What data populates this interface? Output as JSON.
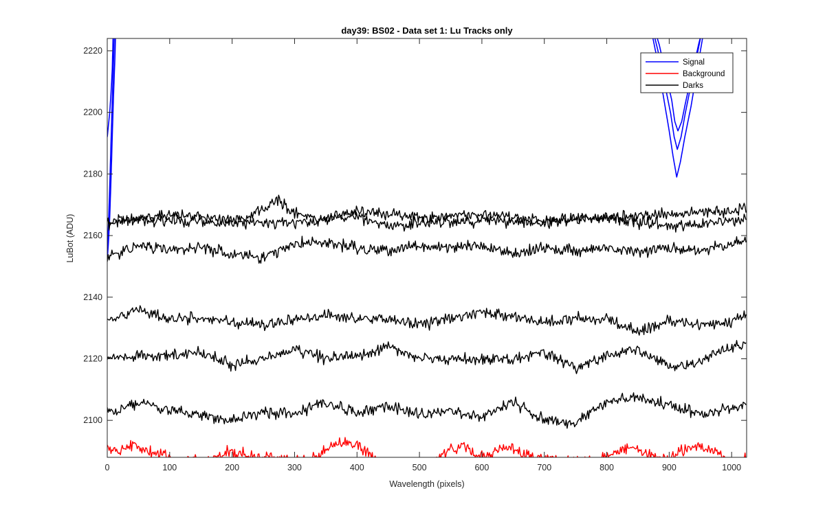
{
  "chart_data": {
    "type": "line",
    "title": "day39: BS02 - Data set 1: Lu Tracks only",
    "xlabel": "Wavelength (pixels)",
    "ylabel": "LuBot (ADU)",
    "xlim": [
      0,
      1024
    ],
    "ylim": [
      2088,
      2224
    ],
    "xticks": [
      0,
      100,
      200,
      300,
      400,
      500,
      600,
      700,
      800,
      900,
      1000
    ],
    "yticks": [
      2100,
      2120,
      2140,
      2160,
      2180,
      2200,
      2220
    ],
    "grid": false,
    "legend_position": "top-right",
    "legend": [
      {
        "label": "Signal",
        "color": "#0000ff"
      },
      {
        "label": "Background",
        "color": "#ff0000"
      },
      {
        "label": "Darks",
        "color": "#000000"
      }
    ],
    "series": [
      {
        "group": "Signal",
        "color": "#0000ff",
        "x": [
          0,
          2,
          4,
          6,
          8,
          10,
          12,
          14
        ],
        "y": [
          2152,
          2158,
          2166,
          2178,
          2192,
          2205,
          2216,
          2230
        ]
      },
      {
        "group": "Signal",
        "color": "#0000ff",
        "x": [
          0,
          2,
          4,
          6,
          8,
          10,
          12
        ],
        "y": [
          2156,
          2164,
          2176,
          2190,
          2204,
          2216,
          2230
        ]
      },
      {
        "group": "Signal",
        "color": "#0000ff",
        "x": [
          0,
          2,
          4,
          6,
          8,
          10
        ],
        "y": [
          2192,
          2196,
          2200,
          2206,
          2214,
          2230
        ]
      },
      {
        "group": "Signal",
        "color": "#0000ff",
        "x": [
          868,
          880,
          890,
          900,
          906,
          912,
          918,
          925,
          935,
          945,
          955,
          962
        ],
        "y": [
          2230,
          2218,
          2206,
          2194,
          2186,
          2179,
          2184,
          2192,
          2202,
          2214,
          2226,
          2234
        ]
      },
      {
        "group": "Signal",
        "color": "#0000ff",
        "x": [
          870,
          882,
          892,
          902,
          908,
          913,
          919,
          926,
          936,
          946,
          956,
          962
        ],
        "y": [
          2230,
          2220,
          2210,
          2200,
          2192,
          2188,
          2192,
          2200,
          2210,
          2220,
          2230,
          2234
        ]
      },
      {
        "group": "Signal",
        "color": "#0000ff",
        "x": [
          872,
          884,
          894,
          904,
          909,
          914,
          920,
          927,
          937,
          947,
          957,
          962
        ],
        "y": [
          2230,
          2222,
          2213,
          2204,
          2197,
          2194,
          2197,
          2204,
          2213,
          2222,
          2230,
          2234
        ]
      },
      {
        "group": "Darks",
        "color": "#000000",
        "x": [
          0,
          100,
          200,
          250,
          270,
          300,
          350,
          400,
          500,
          600,
          700,
          800,
          900,
          1000,
          1024
        ],
        "y": [
          2164,
          2167,
          2165,
          2168,
          2172,
          2167,
          2165,
          2168,
          2166,
          2167,
          2165,
          2166,
          2167,
          2168,
          2169
        ]
      },
      {
        "group": "Darks",
        "color": "#000000",
        "x": [
          0,
          100,
          200,
          300,
          400,
          450,
          500,
          600,
          700,
          800,
          900,
          1000,
          1024
        ],
        "y": [
          2165,
          2165,
          2164,
          2164,
          2166,
          2163,
          2164,
          2165,
          2164,
          2166,
          2163,
          2165,
          2166
        ]
      },
      {
        "group": "Darks",
        "color": "#000000",
        "x": [
          0,
          50,
          100,
          150,
          200,
          250,
          300,
          350,
          400,
          450,
          500,
          550,
          600,
          650,
          700,
          750,
          800,
          850,
          900,
          950,
          1000,
          1024
        ],
        "y": [
          2153,
          2157,
          2155,
          2156,
          2154,
          2153,
          2157,
          2158,
          2156,
          2155,
          2157,
          2156,
          2157,
          2154,
          2156,
          2155,
          2156,
          2155,
          2156,
          2155,
          2157,
          2158
        ]
      },
      {
        "group": "Darks",
        "color": "#000000",
        "x": [
          0,
          50,
          100,
          150,
          200,
          250,
          300,
          350,
          400,
          450,
          500,
          550,
          600,
          650,
          700,
          750,
          800,
          850,
          900,
          950,
          1000,
          1024
        ],
        "y": [
          2132,
          2136,
          2133,
          2133,
          2132,
          2131,
          2133,
          2134,
          2133,
          2133,
          2131,
          2133,
          2135,
          2134,
          2132,
          2133,
          2133,
          2129,
          2132,
          2131,
          2132,
          2134
        ]
      },
      {
        "group": "Darks",
        "color": "#000000",
        "x": [
          0,
          50,
          100,
          150,
          200,
          250,
          300,
          350,
          400,
          450,
          500,
          550,
          600,
          650,
          700,
          750,
          800,
          850,
          900,
          950,
          1000,
          1024
        ],
        "y": [
          2120,
          2121,
          2121,
          2122,
          2118,
          2120,
          2123,
          2120,
          2121,
          2124,
          2120,
          2120,
          2120,
          2120,
          2122,
          2117,
          2121,
          2123,
          2117,
          2119,
          2124,
          2124
        ]
      },
      {
        "group": "Darks",
        "color": "#000000",
        "x": [
          0,
          50,
          100,
          150,
          200,
          250,
          300,
          350,
          400,
          450,
          500,
          550,
          600,
          650,
          700,
          750,
          800,
          850,
          900,
          950,
          1000,
          1024
        ],
        "y": [
          2102,
          2106,
          2103,
          2102,
          2100,
          2103,
          2102,
          2106,
          2102,
          2105,
          2102,
          2103,
          2101,
          2106,
          2100,
          2099,
          2106,
          2107,
          2105,
          2102,
          2104,
          2105
        ]
      },
      {
        "group": "Background",
        "color": "#ff0000",
        "x": [
          0,
          20,
          40,
          60,
          80,
          100,
          110,
          170,
          190,
          210,
          240,
          280,
          320,
          340,
          360,
          380,
          400,
          420,
          440,
          530,
          550,
          570,
          590,
          610,
          630,
          650,
          670,
          700,
          740,
          780,
          800,
          820,
          840,
          860,
          880,
          900,
          920,
          940,
          960,
          980,
          1000,
          1020,
          1024
        ],
        "y": [
          2091,
          2090,
          2092,
          2090,
          2089,
          2089,
          2086,
          2088,
          2090,
          2089,
          2088,
          2088,
          2087,
          2089,
          2092,
          2093,
          2092,
          2089,
          2086,
          2087,
          2091,
          2092,
          2089,
          2088,
          2091,
          2091,
          2089,
          2087,
          2087,
          2087,
          2088,
          2090,
          2091,
          2090,
          2088,
          2088,
          2090,
          2092,
          2091,
          2089,
          2086,
          2087,
          2088
        ]
      }
    ]
  }
}
